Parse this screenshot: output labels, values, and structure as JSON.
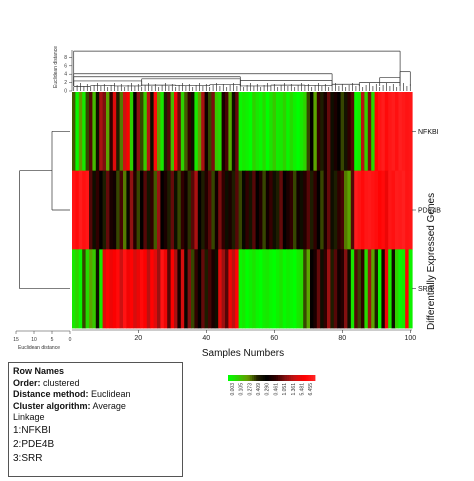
{
  "chart_data": {
    "type": "heatmap",
    "top_axis_label": "Euclidean distance",
    "top_axis_ticks": [
      "0",
      "2",
      "4",
      "6",
      "8"
    ],
    "left_axis_label": "Euclidean distance",
    "left_axis_ticks": [
      "15",
      "10",
      "5",
      "0"
    ],
    "xlabel": "Samples Numbers",
    "ylabel": "Differentially Expressed Genes",
    "x_ticks": [
      "20",
      "40",
      "60",
      "80",
      "100"
    ],
    "xlim": [
      1,
      100
    ],
    "genes": [
      "NFKBI",
      "PDE4B",
      "SRR"
    ],
    "color_scale": {
      "stops": [
        "#00ff00",
        "#33cc00",
        "#669900",
        "#222200",
        "#000000",
        "#330000",
        "#881111",
        "#cc1111",
        "#ff0000",
        "#ff2222"
      ],
      "tick_labels": [
        "0.003",
        "0.105",
        "0.273",
        "0.409",
        "0.290",
        "0.461",
        "1.051",
        "1.361",
        "5.481",
        "6.455"
      ]
    },
    "values": [
      [
        0.28,
        0.02,
        0.22,
        0.05,
        0.3,
        0.6,
        0.15,
        0.4,
        0.72,
        0.65,
        0.2,
        0.55,
        0.82,
        0.35,
        0.25,
        0.78,
        0.88,
        0.1,
        0.45,
        0.68,
        0.3,
        0.12,
        0.75,
        0.4,
        0.92,
        0.2,
        0.05,
        0.35,
        0.6,
        0.15,
        0.85,
        0.62,
        0.1,
        0.28,
        0.55,
        0.4,
        0.05,
        0.22,
        0.72,
        0.48,
        0.3,
        0.65,
        0.12,
        0.08,
        0.5,
        0.58,
        0.18,
        0.4,
        0.62,
        0.02,
        0.05,
        0.03,
        0.0,
        0.1,
        0.05,
        0.02,
        0.08,
        0.0,
        0.06,
        0.12,
        0.04,
        0.05,
        0.1,
        0.02,
        0.08,
        0.03,
        0.0,
        0.05,
        0.1,
        0.3,
        0.45,
        0.2,
        0.55,
        0.35,
        0.5,
        0.62,
        0.4,
        0.5,
        0.45,
        0.3,
        0.38,
        0.55,
        0.6,
        0.02,
        0.05,
        0.75,
        0.1,
        0.65,
        0.08,
        0.9,
        0.95,
        0.98,
        0.92,
        0.96,
        0.98,
        0.94,
        0.99,
        0.97,
        0.95,
        0.96
      ],
      [
        0.95,
        0.92,
        0.98,
        0.94,
        0.96,
        0.6,
        0.4,
        0.55,
        0.45,
        0.35,
        0.62,
        0.5,
        0.48,
        0.3,
        0.58,
        0.25,
        0.42,
        0.68,
        0.52,
        0.3,
        0.45,
        0.6,
        0.38,
        0.55,
        0.28,
        0.7,
        0.45,
        0.5,
        0.35,
        0.62,
        0.4,
        0.3,
        0.55,
        0.48,
        0.32,
        0.6,
        0.72,
        0.45,
        0.35,
        0.52,
        0.6,
        0.3,
        0.48,
        0.65,
        0.55,
        0.4,
        0.5,
        0.35,
        0.6,
        0.3,
        0.42,
        0.55,
        0.38,
        0.6,
        0.45,
        0.52,
        0.3,
        0.48,
        0.56,
        0.4,
        0.35,
        0.62,
        0.45,
        0.5,
        0.55,
        0.3,
        0.48,
        0.4,
        0.52,
        0.6,
        0.35,
        0.55,
        0.45,
        0.3,
        0.5,
        0.62,
        0.4,
        0.35,
        0.55,
        0.58,
        0.25,
        0.2,
        0.6,
        0.98,
        0.95,
        0.92,
        0.96,
        0.97,
        0.95,
        0.93,
        0.9,
        0.92,
        0.85,
        0.96,
        0.94,
        0.98,
        0.97,
        0.99,
        0.95,
        0.96
      ],
      [
        0.05,
        0.1,
        0.02,
        0.3,
        0.08,
        0.2,
        0.12,
        0.4,
        0.05,
        0.82,
        0.9,
        0.85,
        0.88,
        0.92,
        0.78,
        0.95,
        0.86,
        0.9,
        0.8,
        0.85,
        0.92,
        0.88,
        0.75,
        0.9,
        0.82,
        0.7,
        0.95,
        0.85,
        0.6,
        0.88,
        0.72,
        0.5,
        0.8,
        0.42,
        0.66,
        0.3,
        0.55,
        0.45,
        0.62,
        0.35,
        0.58,
        0.5,
        0.4,
        0.82,
        0.7,
        0.6,
        0.85,
        0.75,
        0.9,
        0.02,
        0.05,
        0.0,
        0.03,
        0.06,
        0.02,
        0.0,
        0.04,
        0.05,
        0.02,
        0.0,
        0.03,
        0.06,
        0.01,
        0.04,
        0.02,
        0.0,
        0.05,
        0.08,
        0.3,
        0.2,
        0.45,
        0.5,
        0.62,
        0.4,
        0.55,
        0.7,
        0.35,
        0.6,
        0.48,
        0.52,
        0.66,
        0.4,
        0.05,
        0.6,
        0.3,
        0.55,
        0.08,
        0.7,
        0.2,
        0.35,
        0.02,
        0.5,
        0.85,
        0.05,
        0.4,
        0.1,
        0.02,
        0.05,
        0.9,
        0.03
      ]
    ]
  },
  "info_box": {
    "title": "Row Names",
    "order_label": "Order:",
    "order_value": "clustered",
    "distance_label": "Distance method:",
    "distance_value": "Euclidean",
    "cluster_label": "Cluster algorithm:",
    "cluster_value": "Average",
    "cluster_value_cont": "Linkage",
    "items": [
      "1:NFKBI",
      "2:PDE4B",
      "3:SRR"
    ]
  }
}
